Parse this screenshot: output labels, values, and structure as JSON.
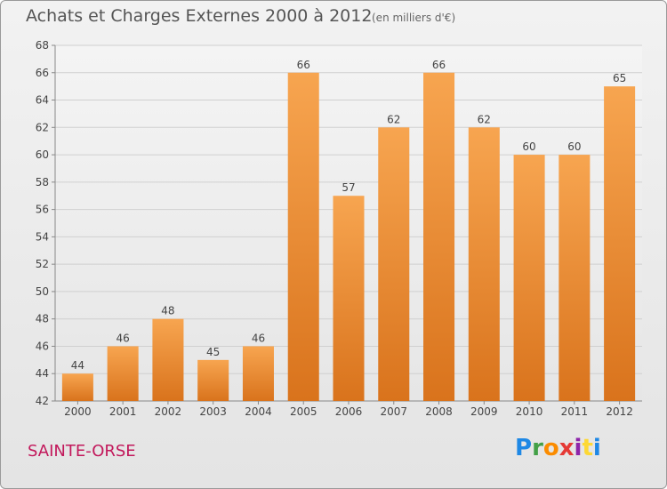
{
  "header": {
    "title": "Achats et Charges Externes 2000 à 2012",
    "subtitle": "(en milliers d'€)"
  },
  "footer": {
    "place": "SAINTE-ORSE",
    "brand_letters": [
      "P",
      "r",
      "o",
      "x",
      "i",
      "t",
      "i"
    ],
    "brand_colors": [
      "#1e88e5",
      "#43a047",
      "#fb8c00",
      "#e53935",
      "#8e24aa",
      "#fdd835",
      "#1e88e5"
    ]
  },
  "chart_data": {
    "type": "bar",
    "title": "Achats et Charges Externes 2000 à 2012",
    "subtitle": "(en milliers d'€)",
    "categories": [
      "2000",
      "2001",
      "2002",
      "2003",
      "2004",
      "2005",
      "2006",
      "2007",
      "2008",
      "2009",
      "2010",
      "2011",
      "2012"
    ],
    "values": [
      44,
      46,
      48,
      45,
      46,
      66,
      57,
      62,
      66,
      62,
      60,
      60,
      65
    ],
    "ylim": [
      42,
      68
    ],
    "yticks": [
      42,
      44,
      46,
      48,
      50,
      52,
      54,
      56,
      58,
      60,
      62,
      64,
      66,
      68
    ],
    "grid": true,
    "bar_color_top": "#f7a550",
    "bar_color_bottom": "#d9731c",
    "data_labels": true
  }
}
